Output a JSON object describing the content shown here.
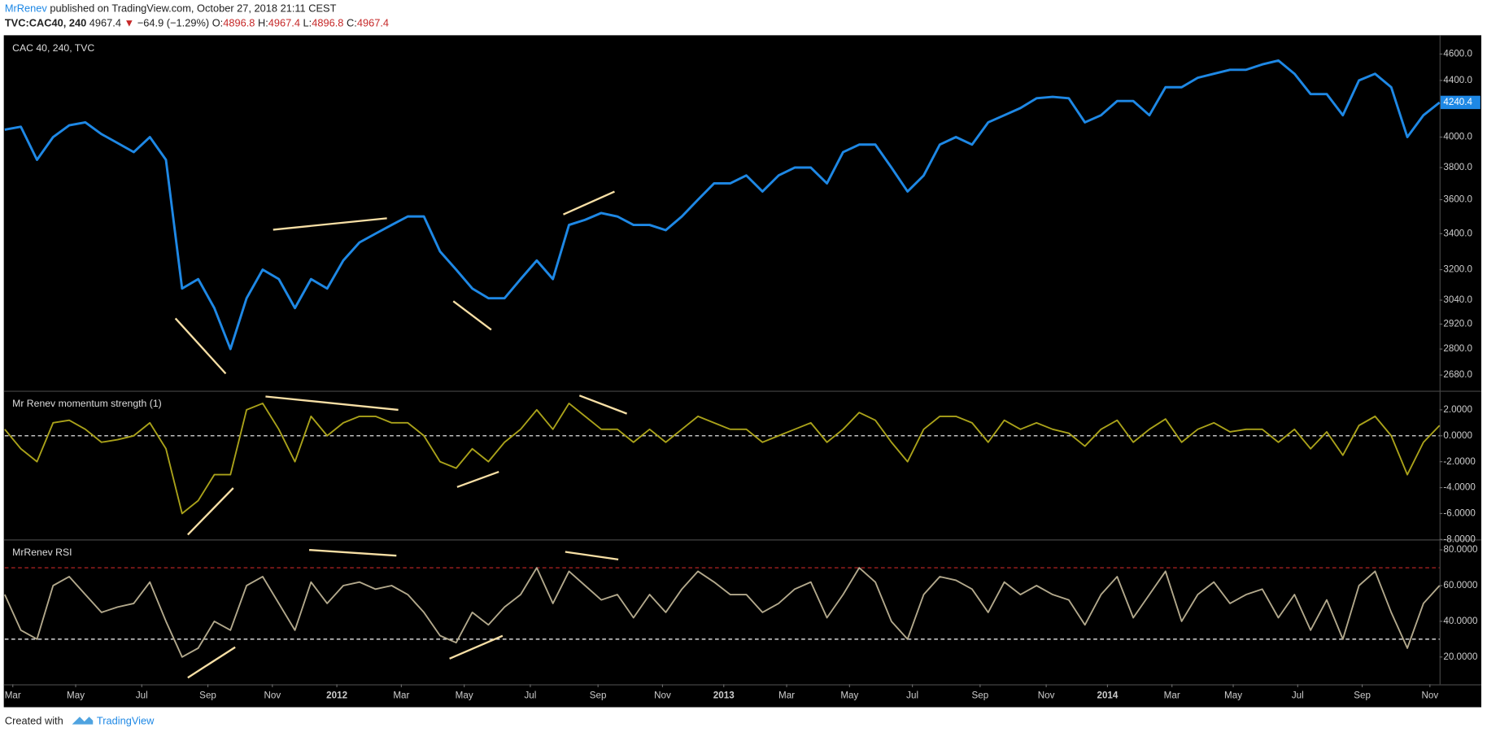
{
  "header": {
    "author": "MrRenev",
    "published": "published on TradingView.com, October 27, 2018 21:11 CEST",
    "symbol": "TVC:CAC40, 240",
    "last": 4967.4,
    "arrow": "▼",
    "change": "−64.9 (−1.29%)",
    "o_label": "O:",
    "o": 4896.8,
    "h_label": "H:",
    "h": 4967.4,
    "l_label": "L:",
    "l": 4896.8,
    "c_label": "C:",
    "c": 4967.4
  },
  "footer": {
    "created": "Created with",
    "brand": "TradingView"
  },
  "chart_data": [
    {
      "type": "line",
      "title": "CAC 40, 240, TVC",
      "log_scale": true,
      "color": "#1e88e5",
      "last_value": 4240.4,
      "xlim": [
        0,
        89
      ],
      "ylim": [
        2610,
        4740
      ],
      "yticks": [
        {
          "value": 2680,
          "label": "2680.0"
        },
        {
          "value": 2800,
          "label": "2800.0"
        },
        {
          "value": 2920,
          "label": "2920.0"
        },
        {
          "value": 3040,
          "label": "3040.0"
        },
        {
          "value": 3200,
          "label": "3200.0"
        },
        {
          "value": 3400,
          "label": "3400.0"
        },
        {
          "value": 3600,
          "label": "3600.0"
        },
        {
          "value": 3800,
          "label": "3800.0"
        },
        {
          "value": 4000,
          "label": "4000.0"
        },
        {
          "value": 4400,
          "label": "4400.0"
        },
        {
          "value": 4600,
          "label": "4600.0"
        }
      ],
      "values": [
        4050,
        4070,
        3850,
        4000,
        4080,
        4100,
        4020,
        3960,
        3900,
        4000,
        3850,
        3100,
        3150,
        3000,
        2800,
        3050,
        3200,
        3150,
        3000,
        3150,
        3100,
        3250,
        3350,
        3400,
        3450,
        3500,
        3500,
        3300,
        3200,
        3100,
        3050,
        3050,
        3150,
        3250,
        3150,
        3450,
        3480,
        3520,
        3500,
        3450,
        3450,
        3420,
        3500,
        3600,
        3700,
        3700,
        3750,
        3650,
        3750,
        3800,
        3800,
        3700,
        3900,
        3950,
        3950,
        3800,
        3650,
        3750,
        3950,
        4000,
        3950,
        4100,
        4150,
        4200,
        4270,
        4280,
        4270,
        4100,
        4150,
        4250,
        4250,
        4150,
        4350,
        4350,
        4420,
        4450,
        4480,
        4480,
        4520,
        4550,
        4450,
        4300,
        4300,
        4150,
        4400,
        4450,
        4350,
        4000,
        4150,
        4240
      ]
    },
    {
      "type": "line",
      "title": "Mr Renev momentum strength (1)",
      "color": "#aaa21a",
      "xlim": [
        0,
        89
      ],
      "ylim": [
        -8,
        3.4
      ],
      "ref_lines": [
        {
          "value": 0,
          "color": "#ffffff"
        }
      ],
      "yticks": [
        {
          "value": 2,
          "label": "2.0000"
        },
        {
          "value": 0,
          "label": "0.0000"
        },
        {
          "value": -2,
          "label": "-2.0000"
        },
        {
          "value": -4,
          "label": "-4.0000"
        },
        {
          "value": -6,
          "label": "-6.0000"
        },
        {
          "value": -8,
          "label": "-8.0000"
        }
      ],
      "values": [
        0.5,
        -1,
        -2,
        1,
        1.2,
        0.5,
        -0.5,
        -0.3,
        0,
        1,
        -1,
        -6,
        -5,
        -3,
        -3,
        2,
        2.5,
        0.5,
        -2,
        1.5,
        0,
        1,
        1.5,
        1.5,
        1,
        1,
        0,
        -2,
        -2.5,
        -1,
        -2,
        -0.5,
        0.5,
        2,
        0.5,
        2.5,
        1.5,
        0.5,
        0.5,
        -0.5,
        0.5,
        -0.5,
        0.5,
        1.5,
        1,
        0.5,
        0.5,
        -0.5,
        0,
        0.5,
        1,
        -0.5,
        0.5,
        1.8,
        1.2,
        -0.5,
        -2,
        0.5,
        1.5,
        1.5,
        1,
        -0.5,
        1.2,
        0.5,
        1,
        0.5,
        0.2,
        -0.8,
        0.5,
        1.2,
        -0.5,
        0.5,
        1.3,
        -0.5,
        0.5,
        1,
        0.3,
        0.5,
        0.5,
        -0.5,
        0.5,
        -1,
        0.3,
        -1.5,
        0.8,
        1.5,
        0,
        -3,
        -0.5,
        0.8
      ]
    },
    {
      "type": "line",
      "title": "MrRenev RSI",
      "color": "#b3a98c",
      "xlim": [
        0,
        89
      ],
      "ylim": [
        4.7,
        85.3
      ],
      "ref_lines": [
        {
          "value": 70,
          "color": "#c62828"
        },
        {
          "value": 30,
          "color": "#ffffff"
        }
      ],
      "yticks": [
        {
          "value": 20,
          "label": "20.0000"
        },
        {
          "value": 40,
          "label": "40.0000"
        },
        {
          "value": 60,
          "label": "60.0000"
        },
        {
          "value": 80,
          "label": "80.0000"
        }
      ],
      "xticks": [
        {
          "value": 0.5,
          "label": "Mar"
        },
        {
          "value": 4.4,
          "label": "May"
        },
        {
          "value": 8.5,
          "label": "Jul"
        },
        {
          "value": 12.6,
          "label": "Sep"
        },
        {
          "value": 16.6,
          "label": "Nov"
        },
        {
          "value": 20.6,
          "label": "2012"
        },
        {
          "value": 24.6,
          "label": "Mar"
        },
        {
          "value": 28.5,
          "label": "May"
        },
        {
          "value": 32.6,
          "label": "Jul"
        },
        {
          "value": 36.8,
          "label": "Sep"
        },
        {
          "value": 40.8,
          "label": "Nov"
        },
        {
          "value": 44.6,
          "label": "2013"
        },
        {
          "value": 48.5,
          "label": "Mar"
        },
        {
          "value": 52.4,
          "label": "May"
        },
        {
          "value": 56.3,
          "label": "Jul"
        },
        {
          "value": 60.5,
          "label": "Sep"
        },
        {
          "value": 64.6,
          "label": "Nov"
        },
        {
          "value": 68.4,
          "label": "2014"
        },
        {
          "value": 72.4,
          "label": "Mar"
        },
        {
          "value": 76.2,
          "label": "May"
        },
        {
          "value": 80.2,
          "label": "Jul"
        },
        {
          "value": 84.2,
          "label": "Sep"
        },
        {
          "value": 88.4,
          "label": "Nov"
        }
      ],
      "values": [
        55,
        35,
        30,
        60,
        65,
        55,
        45,
        48,
        50,
        62,
        40,
        20,
        25,
        40,
        35,
        60,
        65,
        50,
        35,
        62,
        50,
        60,
        62,
        58,
        60,
        55,
        45,
        32,
        28,
        45,
        38,
        48,
        55,
        70,
        50,
        68,
        60,
        52,
        55,
        42,
        55,
        45,
        58,
        68,
        62,
        55,
        55,
        45,
        50,
        58,
        62,
        42,
        55,
        70,
        62,
        40,
        30,
        55,
        65,
        63,
        58,
        45,
        62,
        55,
        60,
        55,
        52,
        38,
        55,
        65,
        42,
        55,
        68,
        40,
        55,
        62,
        50,
        55,
        58,
        42,
        55,
        35,
        52,
        30,
        60,
        68,
        45,
        25,
        50,
        60
      ]
    }
  ]
}
